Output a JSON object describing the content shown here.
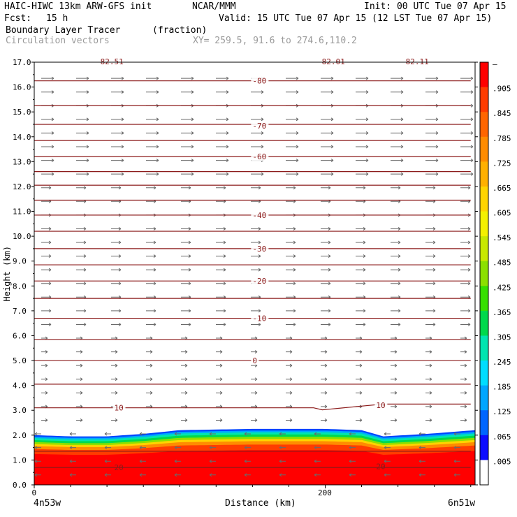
{
  "header": {
    "model": "HAIC-HIWC 13km ARW-GFS init",
    "org": "NCAR/MMM",
    "init": "Init: 00 UTC Tue 07 Apr 15",
    "fcst_label": "Fcst:",
    "fcst_value": "15 h",
    "valid": "Valid: 15 UTC Tue 07 Apr 15 (12 LST Tue 07 Apr 15)",
    "field": "Boundary Layer Tracer",
    "field_units": "(fraction)",
    "vectors": "Circulation vectors",
    "xy": "XY= 259.5, 91.6 to 274.6,110.2"
  },
  "colors": {
    "contour": "#8b1a1a",
    "vector": "#6a6a6a",
    "colorbar": [
      "#ffffff",
      "#0c0cff",
      "#0066ff",
      "#00a6ff",
      "#00ddff",
      "#00e5b0",
      "#00d94c",
      "#36e000",
      "#8ce000",
      "#c8e800",
      "#f4f000",
      "#ffd400",
      "#ffb000",
      "#ff8c00",
      "#ff6600",
      "#ff3c00",
      "#ff0000"
    ]
  },
  "chart_data": {
    "type": "cross-section",
    "xlabel": "Distance (km)",
    "ylabel": "Height (km)",
    "x_range": [
      0,
      303
    ],
    "y_range": [
      0,
      17
    ],
    "x_ticks": [
      "0",
      "200"
    ],
    "y_ticks": [
      "0.0",
      "1.0",
      "2.0",
      "3.0",
      "4.0",
      "5.0",
      "6.0",
      "7.0",
      "8.0",
      "9.0",
      "10.0",
      "11.0",
      "12.0",
      "13.0",
      "14.0",
      "15.0",
      "16.0",
      "17.0"
    ],
    "left_endpoint": "4n53w",
    "right_endpoint": "6n51w",
    "colorbar_labels": [
      "–",
      ".905",
      ".845",
      ".785",
      ".725",
      ".665",
      ".605",
      ".545",
      ".485",
      ".425",
      ".365",
      ".305",
      ".245",
      ".185",
      ".125",
      ".065",
      ".005"
    ],
    "temperature_contours": [
      {
        "label": "-80",
        "height_km": 16.25
      },
      {
        "label": "-70",
        "height_km": 14.45
      },
      {
        "label": "-60",
        "height_km": 13.2
      },
      {
        "label": "-40",
        "height_km": 10.85
      },
      {
        "label": "-30",
        "height_km": 9.5
      },
      {
        "label": "-20",
        "height_km": 8.2
      },
      {
        "label": "-10",
        "height_km": 6.7
      },
      {
        "label": "0",
        "height_km": 5.0
      },
      {
        "label": "10",
        "height_km": 3.1
      },
      {
        "label": "10",
        "height_km": 3.2
      },
      {
        "label": "20",
        "height_km": 0.7
      },
      {
        "label": "20",
        "height_km": 0.75
      }
    ],
    "top_labels": [
      "-82.51",
      "-82.01",
      "-82.11"
    ],
    "tracer_top_km": [
      [
        0,
        2.0
      ],
      [
        25,
        1.95
      ],
      [
        50,
        1.95
      ],
      [
        75,
        2.05
      ],
      [
        100,
        2.2
      ],
      [
        150,
        2.25
      ],
      [
        200,
        2.25
      ],
      [
        225,
        2.2
      ],
      [
        240,
        1.95
      ],
      [
        270,
        2.05
      ],
      [
        303,
        2.2
      ]
    ]
  }
}
